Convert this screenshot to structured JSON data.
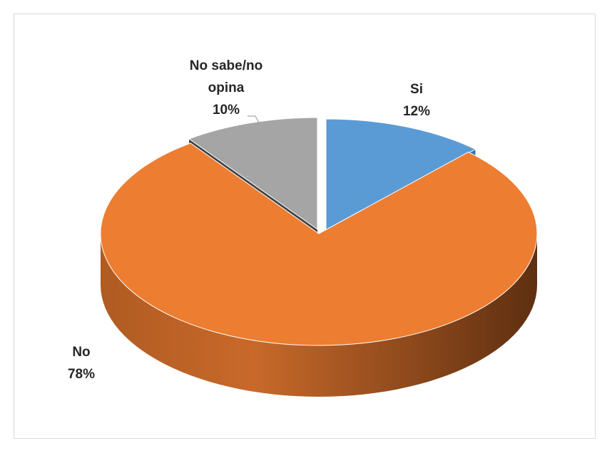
{
  "chart_data": {
    "type": "pie",
    "style": "3d-exploded",
    "title": "",
    "categories": [
      "Si",
      "No",
      "No sabe/no opina"
    ],
    "values": [
      12,
      78,
      10
    ],
    "unit": "%",
    "colors": [
      "#5b9bd5",
      "#ed7d31",
      "#a5a5a5"
    ],
    "side_colors": [
      "#41719c",
      "#ae5a21",
      "#505050"
    ],
    "labels": [
      {
        "lines": [
          "Si"
        ],
        "value_text": "12%"
      },
      {
        "lines": [
          "No"
        ],
        "value_text": "78%"
      },
      {
        "lines": [
          "No sabe/no",
          "opina"
        ],
        "value_text": "10%"
      }
    ],
    "legend": "none"
  }
}
